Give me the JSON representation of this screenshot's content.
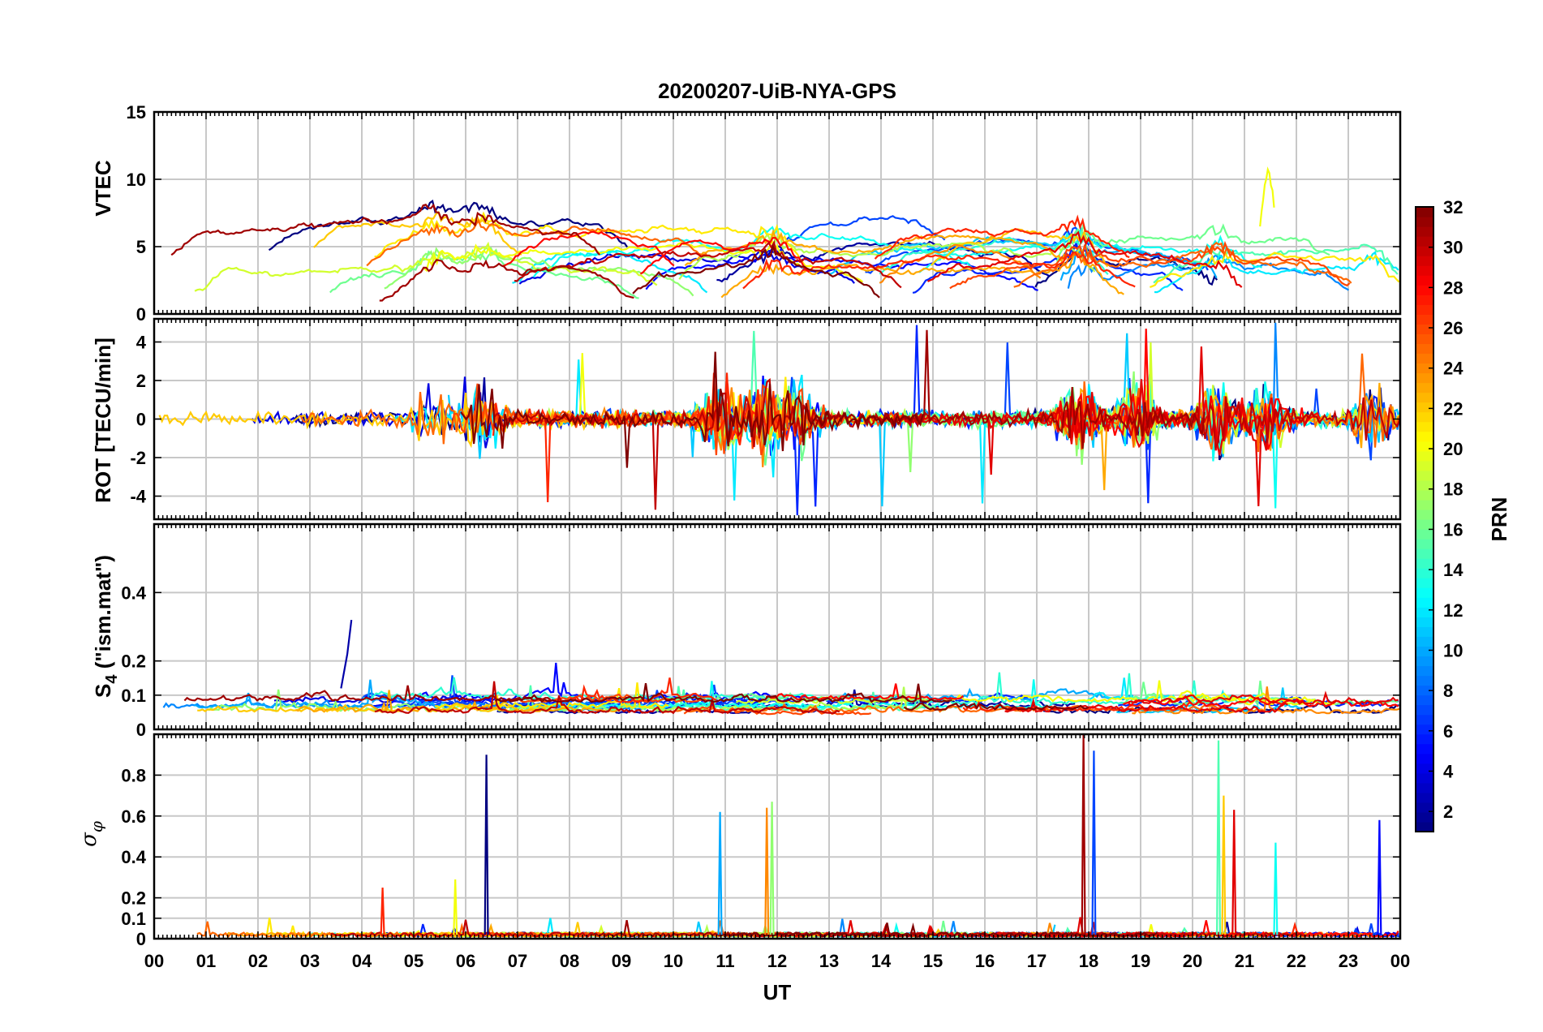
{
  "figure_title": "20200207-UiB-NYA-GPS",
  "colors": {
    "grid": "#c8c8c8",
    "axis": "#000000",
    "background": "#ffffff"
  },
  "chart_data": [
    {
      "type": "line",
      "panel": "VTEC",
      "ylabel": "VTEC",
      "ylim": [
        0,
        15
      ],
      "yticks": [
        "0",
        "5",
        "10",
        "15"
      ],
      "ytick_values": [
        0,
        5,
        10,
        15
      ],
      "features": {
        "baseline_range": [
          2,
          6
        ],
        "bumps": [
          [
            5.4,
            2.5
          ],
          [
            6.3,
            2.3
          ],
          [
            11.9,
            2.5
          ],
          [
            17.8,
            3.0
          ],
          [
            20.5,
            2.5
          ],
          [
            23.5,
            2.0
          ]
        ],
        "outlier": {
          "prn": 20,
          "x": [
            21.3,
            21.6
          ],
          "y": [
            6.5,
            11.2
          ]
        }
      }
    },
    {
      "type": "line",
      "panel": "ROT",
      "ylabel": "ROT [TECU/min]",
      "ylim": [
        -5.2,
        5.2
      ],
      "yticks": [
        "-4",
        "-2",
        "0",
        "2",
        "4"
      ],
      "ytick_values": [
        -4,
        -2,
        0,
        2,
        4
      ],
      "features": {
        "noise_amplitude": 0.35,
        "spike_max": 5.0,
        "active_hours": [
          5.4,
          6.3,
          10.9,
          11.7,
          12.4,
          17.8,
          18.9,
          20.5,
          21.4,
          23.5
        ]
      }
    },
    {
      "type": "line",
      "panel": "S4",
      "ylabel_main": "S",
      "ylabel_sub": "4",
      "ylabel_rest": " (\"ism.mat\")",
      "ylim": [
        0,
        0.6
      ],
      "yticks": [
        "0",
        "0.1",
        "0.2",
        "0.4"
      ],
      "ytick_values": [
        0,
        0.1,
        0.2,
        0.4
      ],
      "features": {
        "baseline_range": [
          0.04,
          0.12
        ],
        "max_peak": {
          "x": 3.8,
          "y": 0.32
        }
      }
    },
    {
      "type": "line",
      "panel": "sigma_phi",
      "ylabel_main": "σ",
      "ylabel_sub": "φ",
      "ylim": [
        0,
        1
      ],
      "yticks": [
        "0",
        "0.1",
        "0.2",
        "0.4",
        "0.6",
        "0.8"
      ],
      "ytick_values": [
        0,
        0.1,
        0.2,
        0.4,
        0.6,
        0.8
      ],
      "features": {
        "baseline": 0.02,
        "spikes": [
          {
            "x": 6.4,
            "y": 0.9
          },
          {
            "x": 10.9,
            "y": 0.62
          },
          {
            "x": 11.9,
            "y": 0.67
          },
          {
            "x": 11.8,
            "y": 0.64
          },
          {
            "x": 17.9,
            "y": 1.0
          },
          {
            "x": 18.1,
            "y": 0.92
          },
          {
            "x": 20.5,
            "y": 0.97
          },
          {
            "x": 20.6,
            "y": 0.7
          },
          {
            "x": 20.8,
            "y": 0.63
          },
          {
            "x": 23.6,
            "y": 0.58
          },
          {
            "x": 21.6,
            "y": 0.47
          },
          {
            "x": 5.8,
            "y": 0.29
          },
          {
            "x": 4.4,
            "y": 0.25
          }
        ]
      }
    }
  ],
  "x_axis": {
    "label": "UT",
    "range": [
      0,
      24
    ],
    "tick_labels": [
      "00",
      "01",
      "02",
      "03",
      "04",
      "05",
      "06",
      "07",
      "08",
      "09",
      "10",
      "11",
      "12",
      "13",
      "14",
      "15",
      "16",
      "17",
      "18",
      "19",
      "20",
      "21",
      "22",
      "23",
      "00"
    ]
  },
  "colorbar": {
    "label": "PRN",
    "range": [
      1,
      32
    ],
    "tick_labels": [
      "2",
      "4",
      "6",
      "8",
      "10",
      "12",
      "14",
      "16",
      "18",
      "20",
      "22",
      "24",
      "26",
      "28",
      "30",
      "32"
    ],
    "tick_values": [
      2,
      4,
      6,
      8,
      10,
      12,
      14,
      16,
      18,
      20,
      22,
      24,
      26,
      28,
      30,
      32
    ]
  },
  "series_prns": [
    1,
    2,
    4,
    5,
    6,
    7,
    9,
    10,
    11,
    12,
    13,
    14,
    15,
    16,
    17,
    18,
    19,
    20,
    21,
    22,
    23,
    24,
    25,
    26,
    27,
    28,
    29,
    30,
    31,
    32
  ]
}
